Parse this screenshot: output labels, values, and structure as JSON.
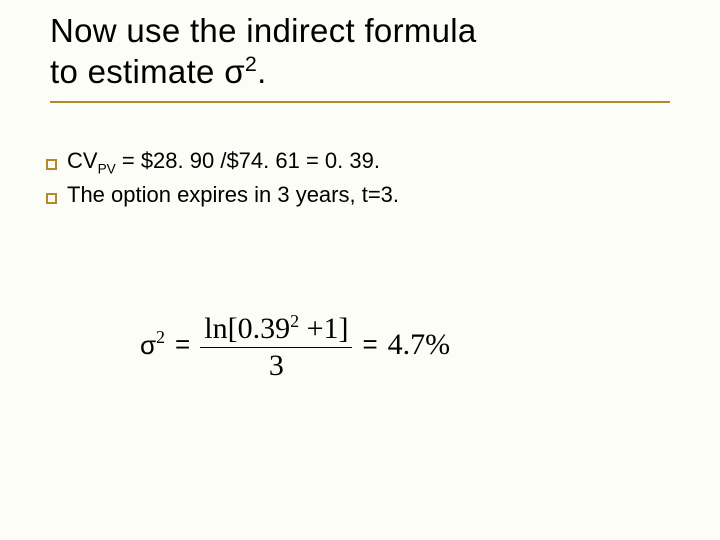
{
  "colors": {
    "accent": "#b28a2a",
    "text": "#000000",
    "background": "#fdfdf7"
  },
  "title": {
    "line1": "Now use the indirect formula",
    "line2_prefix": "to estimate ",
    "sigma": "σ",
    "exp": "2",
    "line2_suffix": "."
  },
  "bullets": [
    {
      "prefix": "CV",
      "sub": "PV",
      "rest": " = $28. 90 /$74. 61 =  0. 39."
    },
    {
      "prefix": "",
      "sub": "",
      "rest": "The option expires in 3 years, t=3."
    }
  ],
  "formula": {
    "lhs_sigma": "σ",
    "lhs_exp": "2",
    "eq1": "=",
    "num_prefix": "ln[",
    "num_base": "0.39",
    "num_exp": "2",
    "num_suffix": " +1]",
    "den": "3",
    "eq2": "=",
    "rhs": "4.7%"
  }
}
